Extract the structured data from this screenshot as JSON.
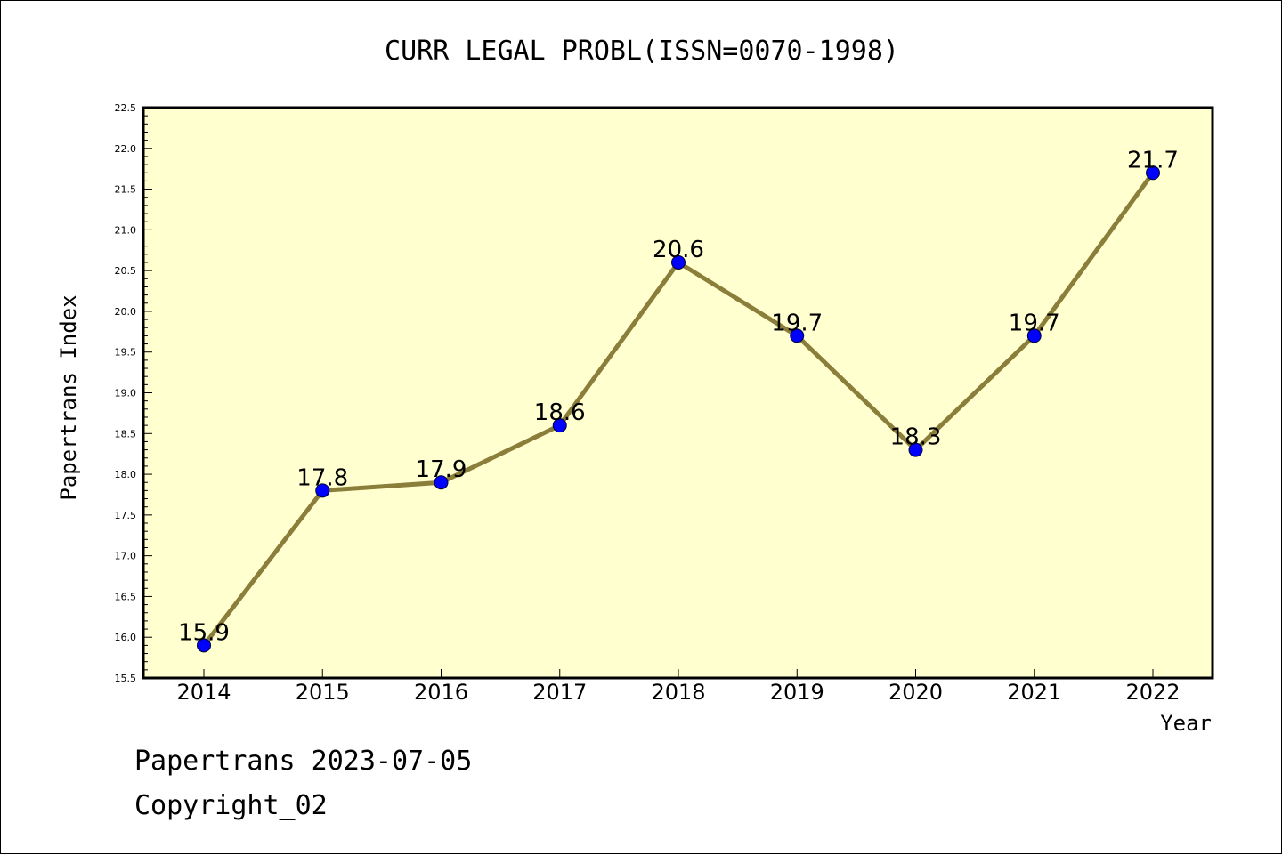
{
  "chart_data": {
    "type": "line",
    "title": "CURR LEGAL PROBL(ISSN=0070-1998)",
    "xlabel": "Year",
    "ylabel": "Papertrans Index",
    "categories": [
      "2014",
      "2015",
      "2016",
      "2017",
      "2018",
      "2019",
      "2020",
      "2021",
      "2022"
    ],
    "values": [
      15.9,
      17.8,
      17.9,
      18.6,
      20.6,
      19.7,
      18.3,
      19.7,
      21.7
    ],
    "data_labels": [
      "15.9",
      "17.8",
      "17.9",
      "18.6",
      "20.6",
      "19.7",
      "18.3",
      "19.7",
      "21.7"
    ],
    "ylim": [
      15.5,
      22.5
    ],
    "yticks": [
      "15.5",
      "16.0",
      "16.5",
      "17.0",
      "17.5",
      "18.0",
      "18.5",
      "19.0",
      "19.5",
      "20.0",
      "20.5",
      "21.0",
      "21.5",
      "22.0",
      "22.5"
    ],
    "grid": false,
    "colors": {
      "plot_background": "#ffffd0",
      "line": "#8b7d3a",
      "marker": "#0000ff"
    }
  },
  "footer": {
    "line1": "Papertrans 2023-07-05",
    "line2": "Copyright_02"
  }
}
